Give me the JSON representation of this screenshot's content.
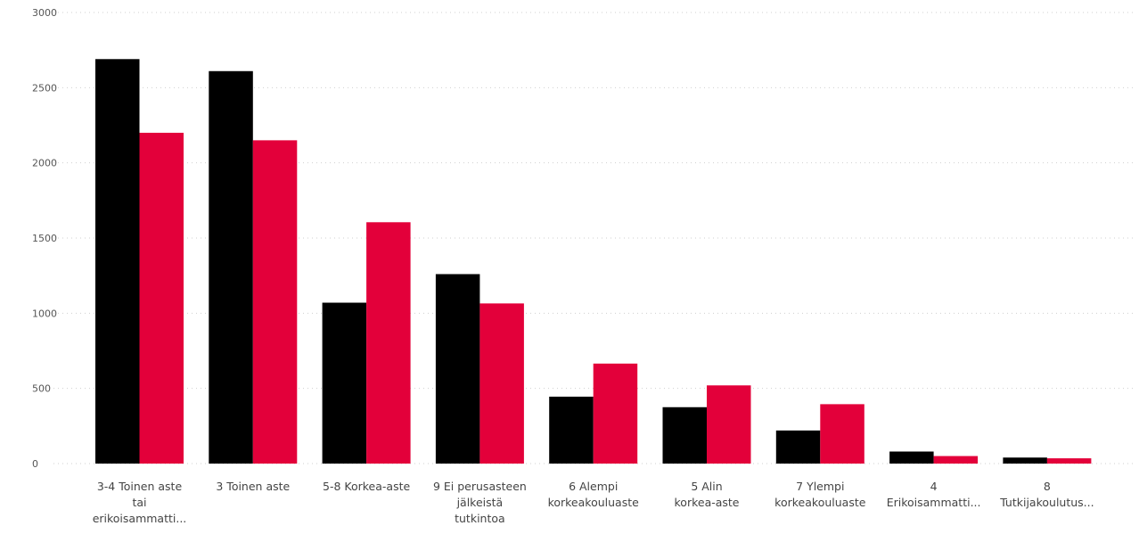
{
  "chart_data": {
    "type": "bar",
    "title": "",
    "xlabel": "",
    "ylabel": "",
    "ylim": [
      0,
      3000
    ],
    "yticks": [
      0,
      500,
      1000,
      1500,
      2000,
      2500,
      3000
    ],
    "ytick_labels": [
      "0",
      "500",
      "1000",
      "1500",
      "2000",
      "2500",
      "3000"
    ],
    "grid": true,
    "legend": "none",
    "categories": [
      [
        "3-4 Toinen aste",
        "tai",
        "erikoisammatti..."
      ],
      [
        "3 Toinen aste"
      ],
      [
        "5-8 Korkea-aste"
      ],
      [
        "9 Ei perusasteen",
        "jälkeistä",
        "tutkintoa"
      ],
      [
        "6 Alempi",
        "korkeakouluaste"
      ],
      [
        "5 Alin",
        "korkea-aste"
      ],
      [
        "7 Ylempi",
        "korkeakouluaste"
      ],
      [
        "4",
        "Erikoisammatti..."
      ],
      [
        "8",
        "Tutkijakoulutus..."
      ]
    ],
    "series": [
      {
        "color": "#000000",
        "values": [
          2690,
          2610,
          1070,
          1260,
          445,
          375,
          220,
          80,
          40
        ]
      },
      {
        "color": "#e3003a",
        "values": [
          2200,
          2150,
          1605,
          1065,
          665,
          520,
          395,
          50,
          35
        ]
      }
    ]
  }
}
